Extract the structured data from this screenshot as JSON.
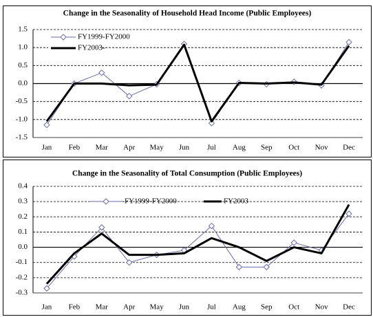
{
  "chart_data": [
    {
      "type": "line",
      "title": "Change in the Seasonality of Household Head Income (Public Employees)",
      "categories": [
        "Jan",
        "Feb",
        "Mar",
        "Apr",
        "May",
        "Jun",
        "Jul",
        "Aug",
        "Sep",
        "Oct",
        "Nov",
        "Dec"
      ],
      "series": [
        {
          "name": "FY1999-FY2000",
          "color": "#6a6aa8",
          "values": [
            -1.15,
            0.0,
            0.3,
            -0.35,
            -0.02,
            1.1,
            -1.1,
            0.02,
            -0.02,
            0.05,
            -0.05,
            1.15
          ]
        },
        {
          "name": "FY2003-",
          "color": "#000000",
          "values": [
            -1.05,
            0.0,
            0.0,
            -0.05,
            -0.03,
            1.08,
            -1.05,
            0.02,
            0.0,
            0.03,
            -0.03,
            1.05
          ]
        }
      ],
      "ylim": [
        -1.5,
        1.5
      ],
      "yticks": [
        1.5,
        {
          "value": 1,
          "label": "1.0"
        },
        0.5,
        {
          "value": 0,
          "label": "0.0"
        },
        -0.5,
        {
          "value": -1,
          "label": "-1.0"
        },
        -1.5
      ],
      "grid": true,
      "legend": "upper left"
    },
    {
      "type": "line",
      "title": "Change in the Seasonality of Total Consumption (Public Employees)",
      "categories": [
        "Jan",
        "Feb",
        "Mar",
        "Apr",
        "May",
        "Jun",
        "Jul",
        "Aug",
        "Sep",
        "Oct",
        "Nov",
        "Dec"
      ],
      "series": [
        {
          "name": "FY1999-FY2000",
          "color": "#6a6aa8",
          "values": [
            -0.27,
            -0.06,
            0.13,
            -0.1,
            -0.05,
            -0.02,
            0.14,
            -0.13,
            -0.13,
            0.03,
            -0.02,
            0.22
          ]
        },
        {
          "name": "FY2003",
          "color": "#000000",
          "values": [
            -0.24,
            -0.04,
            0.09,
            -0.05,
            -0.05,
            -0.04,
            0.06,
            0.0,
            -0.09,
            0.0,
            -0.04,
            0.28
          ]
        }
      ],
      "ylim": [
        -0.3,
        0.4
      ],
      "yticks": [
        0.4,
        0.3,
        0.2,
        0.1,
        {
          "value": 0,
          "label": "0.0"
        },
        -0.1,
        -0.2,
        -0.3
      ],
      "grid": true,
      "legend": "upper center"
    }
  ]
}
